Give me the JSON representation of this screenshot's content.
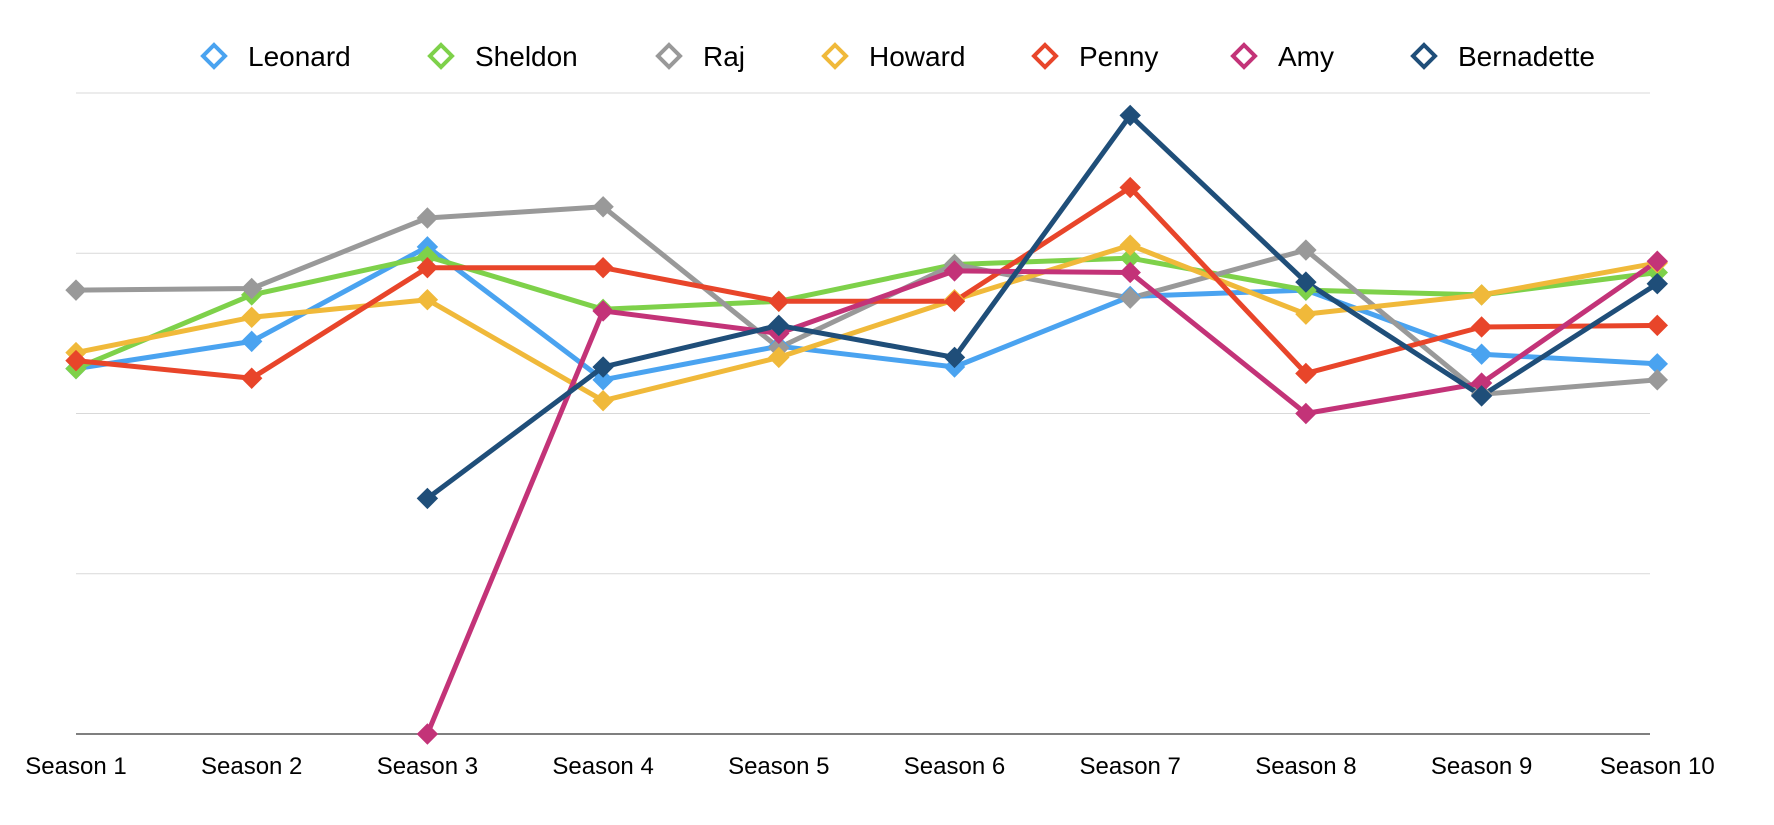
{
  "chart_data": {
    "type": "line",
    "title": "",
    "xlabel": "",
    "ylabel": "",
    "categories": [
      "Season 1",
      "Season 2",
      "Season 3",
      "Season 4",
      "Season 5",
      "Season 6",
      "Season 7",
      "Season 8",
      "Season 9",
      "Season 10"
    ],
    "ylim": [
      0,
      4
    ],
    "grid": true,
    "legend": "top",
    "series": [
      {
        "name": "Leonard",
        "color": "#4aa3f0",
        "values": [
          2.28,
          2.45,
          3.04,
          2.21,
          2.42,
          2.29,
          2.73,
          2.77,
          2.37,
          2.31
        ]
      },
      {
        "name": "Sheldon",
        "color": "#7ed14a",
        "values": [
          2.28,
          2.74,
          2.98,
          2.65,
          2.7,
          2.93,
          2.97,
          2.77,
          2.74,
          2.88
        ]
      },
      {
        "name": "Raj",
        "color": "#999999",
        "values": [
          2.77,
          2.78,
          3.22,
          3.29,
          2.41,
          2.93,
          2.72,
          3.02,
          2.12,
          2.21
        ]
      },
      {
        "name": "Howard",
        "color": "#f0b93a",
        "values": [
          2.38,
          2.6,
          2.71,
          2.08,
          2.35,
          2.71,
          3.05,
          2.62,
          2.74,
          2.94
        ]
      },
      {
        "name": "Penny",
        "color": "#e8452a",
        "values": [
          2.33,
          2.22,
          2.91,
          2.91,
          2.7,
          2.7,
          3.41,
          2.25,
          2.54,
          2.55
        ]
      },
      {
        "name": "Amy",
        "color": "#c33378",
        "values": [
          null,
          null,
          0.0,
          2.64,
          2.5,
          2.89,
          2.88,
          2.0,
          2.19,
          2.95
        ]
      },
      {
        "name": "Bernadette",
        "color": "#1f4e79",
        "values": [
          null,
          null,
          1.47,
          2.29,
          2.55,
          2.35,
          3.86,
          2.82,
          2.11,
          2.81
        ]
      }
    ]
  }
}
